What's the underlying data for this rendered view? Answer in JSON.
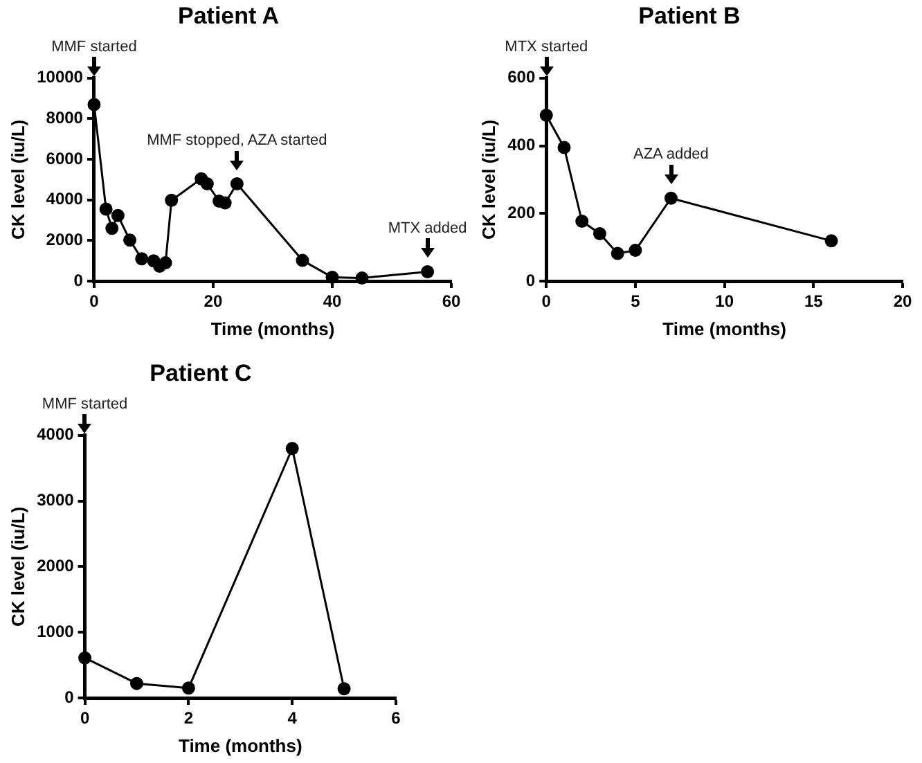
{
  "chart_data": [
    {
      "type": "line",
      "title": "Patient A",
      "xlabel": "Time (months)",
      "ylabel": "CK level (iu/L)",
      "color": "#000000",
      "marker": "circle",
      "line_style": "solid",
      "x": [
        0,
        2,
        3,
        4,
        6,
        8,
        10,
        11,
        12,
        13,
        18,
        19,
        21,
        22,
        24,
        35,
        40,
        45,
        56
      ],
      "values": [
        8700,
        3550,
        2600,
        3230,
        2020,
        1100,
        1000,
        730,
        900,
        3980,
        5040,
        4790,
        3940,
        3850,
        4790,
        1020,
        190,
        150,
        460
      ],
      "xlim": [
        0,
        60
      ],
      "xticks": [
        0,
        20,
        40,
        60
      ],
      "ylim": [
        0,
        10000
      ],
      "yticks": [
        0,
        2000,
        4000,
        6000,
        8000,
        10000
      ],
      "annotations": [
        "MMF started",
        {
          "text": "MMF stopped, AZA started",
          "x": 24,
          "y": 4790
        },
        {
          "text": "MTX added",
          "x": 56,
          "y": 460
        }
      ]
    },
    {
      "type": "line",
      "title": "Patient B",
      "xlabel": "Time (months)",
      "ylabel": "CK level (iu/L)",
      "color": "#000000",
      "marker": "circle",
      "line_style": "solid",
      "x": [
        0,
        1,
        2,
        3,
        4,
        5,
        7,
        16
      ],
      "values": [
        490,
        395,
        177,
        140,
        82,
        91,
        245,
        119
      ],
      "xlim": [
        0,
        20
      ],
      "xticks": [
        0,
        5,
        10,
        15,
        20
      ],
      "ylim": [
        0,
        600
      ],
      "yticks": [
        0,
        200,
        400,
        600
      ],
      "annotations": [
        "MTX started",
        {
          "text": "AZA added",
          "x": 7,
          "y": 245
        }
      ]
    },
    {
      "type": "line",
      "title": "Patient C",
      "xlabel": "Time (months)",
      "ylabel": "CK level (iu/L)",
      "color": "#000000",
      "marker": "circle",
      "line_style": "solid",
      "x": [
        0,
        1,
        2,
        4,
        5
      ],
      "values": [
        610,
        220,
        150,
        3800,
        140
      ],
      "xlim": [
        0,
        6
      ],
      "xticks": [
        0,
        2,
        4,
        6
      ],
      "ylim": [
        0,
        4000
      ],
      "yticks": [
        0,
        1000,
        2000,
        3000,
        4000
      ],
      "annotations": [
        "MMF started"
      ]
    }
  ]
}
